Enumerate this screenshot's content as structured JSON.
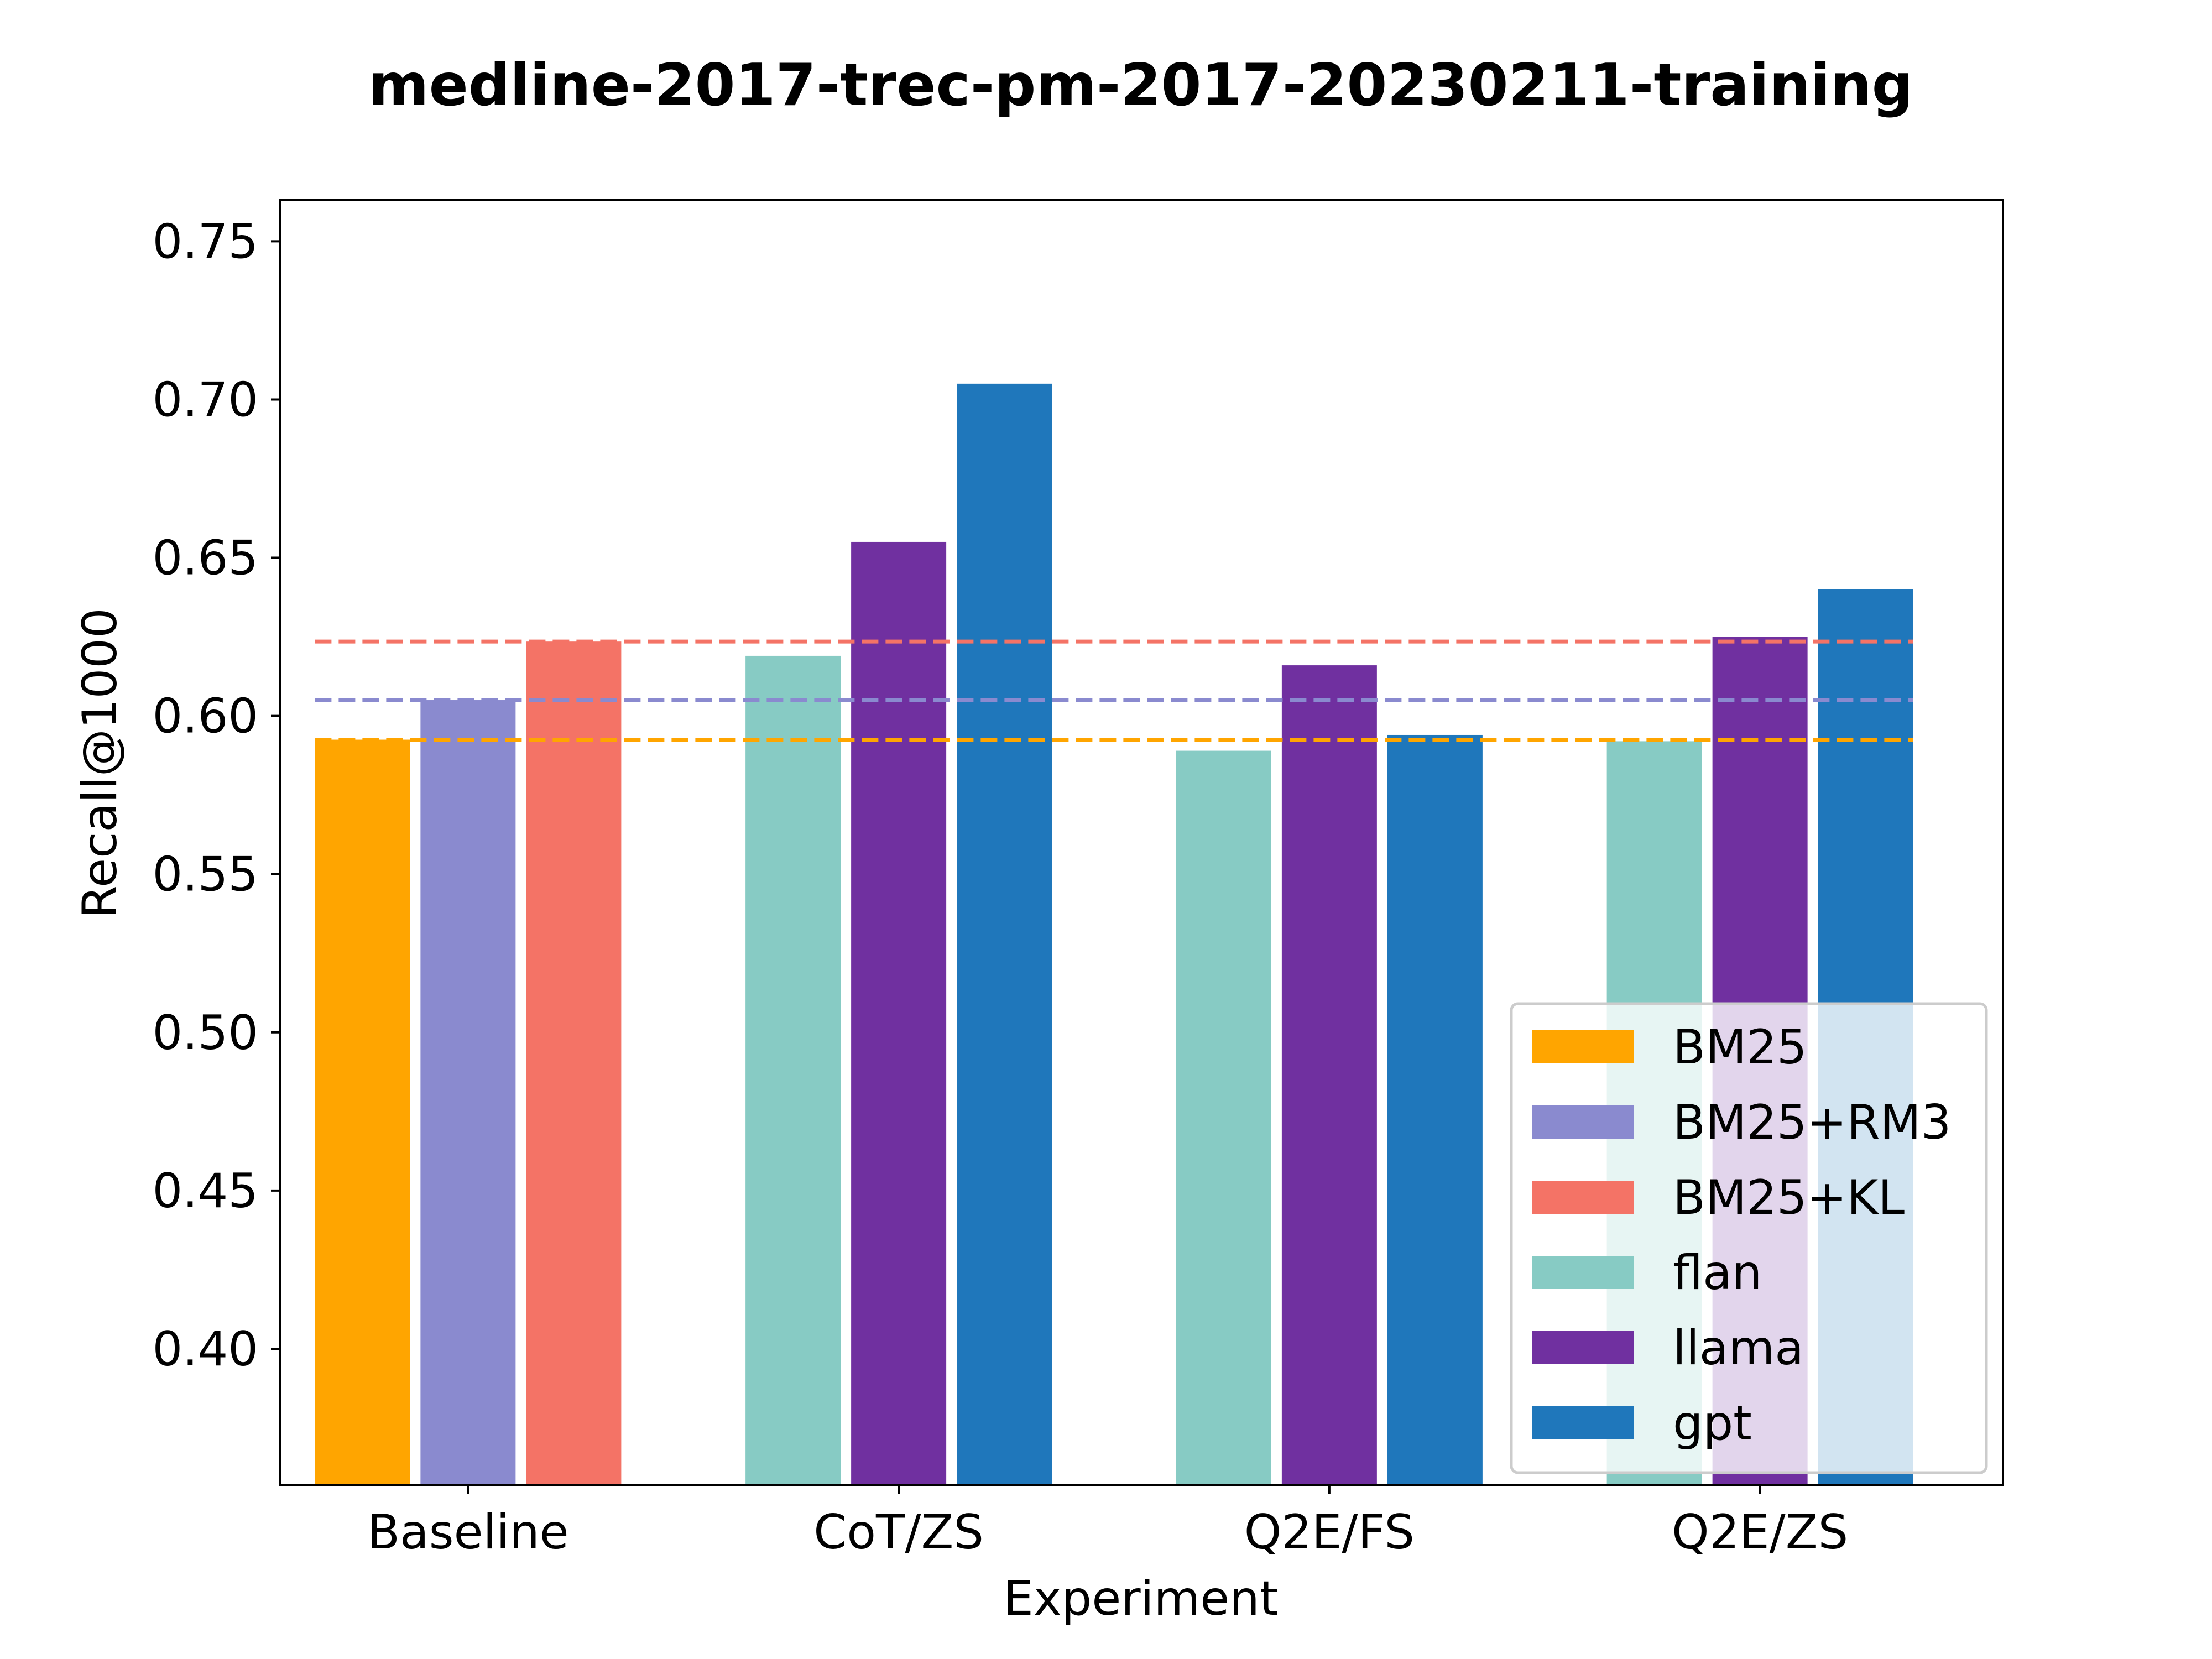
{
  "chart_data": {
    "type": "bar",
    "title": "medline-2017-trec-pm-2017-20230211-training",
    "xlabel": "Experiment",
    "ylabel": "Recall@1000",
    "ylim": [
      0.357,
      0.763
    ],
    "yticks": [
      "0.40",
      "0.45",
      "0.50",
      "0.55",
      "0.60",
      "0.65",
      "0.70",
      "0.75"
    ],
    "categories": [
      "Baseline",
      "CoT/ZS",
      "Q2E/FS",
      "Q2E/ZS"
    ],
    "baseline_series": [
      {
        "name": "BM25",
        "value": 0.5925,
        "color": "#FFA500"
      },
      {
        "name": "BM25+RM3",
        "value": 0.605,
        "color": "#8A8ACF"
      },
      {
        "name": "BM25+KL",
        "value": 0.6235,
        "color": "#F47366"
      }
    ],
    "series": [
      {
        "name": "flan",
        "color": "#87CBC4",
        "values": [
          null,
          0.619,
          0.589,
          0.592
        ]
      },
      {
        "name": "llama",
        "color": "#7030A0",
        "values": [
          null,
          0.655,
          0.616,
          0.625
        ]
      },
      {
        "name": "gpt",
        "color": "#1F77BB",
        "values": [
          null,
          0.705,
          0.594,
          0.64
        ]
      }
    ],
    "reference_lines": [
      "BM25",
      "BM25+RM3",
      "BM25+KL"
    ],
    "legend": {
      "placement": "lower-right",
      "entries": [
        "BM25",
        "BM25+RM3",
        "BM25+KL",
        "flan",
        "llama",
        "gpt"
      ]
    },
    "grid": false
  }
}
